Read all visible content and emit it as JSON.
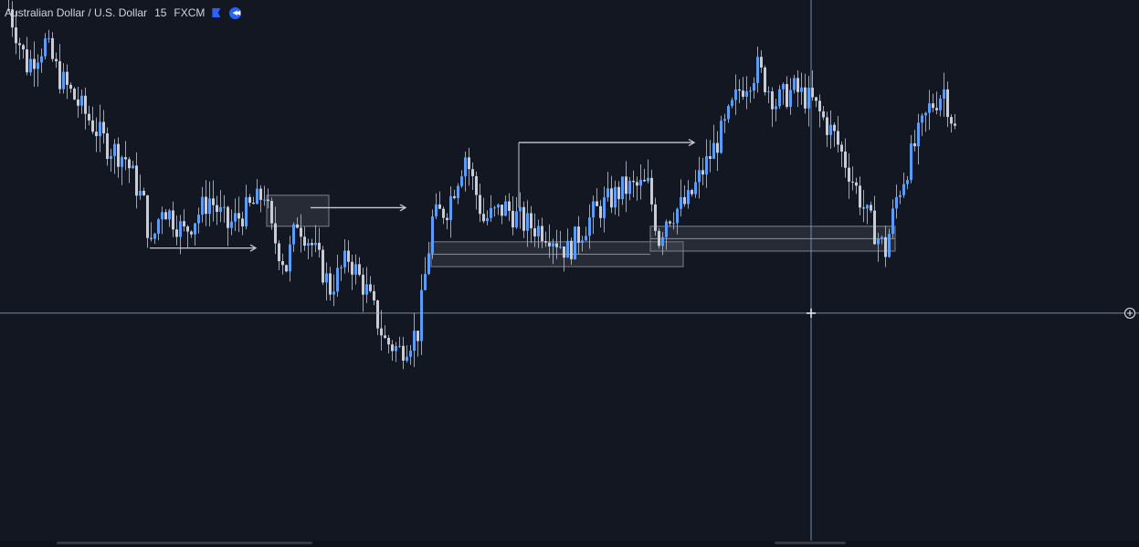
{
  "header": {
    "symbol_name": "Australian Dollar / U.S. Dollar",
    "interval": "15",
    "exchange": "FXCM",
    "flag_icon": "flag-icon",
    "replay_icon": "replay-icon"
  },
  "colors": {
    "background": "#131722",
    "candle": "#5b9cf6",
    "wick": "#9aa5b8",
    "crosshair": "#8fa6c6",
    "annotation": "#c6cad3",
    "zone_fill": "#5d606b"
  },
  "crosshair": {
    "time_index": 220,
    "price": 0.6462
  },
  "chart_data": {
    "type": "line",
    "title": "",
    "xlabel": "",
    "ylabel": "",
    "grid": false,
    "ylim": [
      0.6414,
      0.656
    ],
    "x_index_range": [
      0,
      311
    ],
    "series": [
      {
        "points": [
          [
            0,
            0.656
          ],
          [
            5,
            0.6542
          ],
          [
            10,
            0.6549
          ],
          [
            14,
            0.6538
          ],
          [
            20,
            0.6528
          ],
          [
            27,
            0.6516
          ],
          [
            32,
            0.6512
          ],
          [
            37,
            0.6497
          ],
          [
            39,
            0.6483
          ],
          [
            42,
            0.6497
          ],
          [
            48,
            0.6488
          ],
          [
            55,
            0.6499
          ],
          [
            60,
            0.649
          ],
          [
            68,
            0.6498
          ],
          [
            70,
            0.6501
          ],
          [
            72,
            0.6488
          ],
          [
            76,
            0.6477
          ],
          [
            79,
            0.6492
          ],
          [
            83,
            0.6484
          ],
          [
            88,
            0.647
          ],
          [
            93,
            0.648
          ],
          [
            98,
            0.6469
          ],
          [
            103,
            0.6453
          ],
          [
            107,
            0.645
          ],
          [
            112,
            0.6456
          ],
          [
            116,
            0.6492
          ],
          [
            120,
            0.6496
          ],
          [
            125,
            0.6513
          ],
          [
            130,
            0.6492
          ],
          [
            136,
            0.6496
          ],
          [
            141,
            0.6491
          ],
          [
            148,
            0.6488
          ],
          [
            153,
            0.6482
          ],
          [
            160,
            0.6494
          ],
          [
            168,
            0.6502
          ],
          [
            175,
            0.6503
          ],
          [
            178,
            0.6486
          ],
          [
            180,
            0.6493
          ],
          [
            186,
            0.6498
          ],
          [
            190,
            0.6508
          ],
          [
            196,
            0.6522
          ],
          [
            200,
            0.6534
          ],
          [
            205,
            0.6541
          ],
          [
            210,
            0.653
          ],
          [
            215,
            0.6534
          ],
          [
            220,
            0.653
          ],
          [
            226,
            0.6519
          ],
          [
            230,
            0.6508
          ],
          [
            235,
            0.6493
          ],
          [
            240,
            0.6482
          ],
          [
            243,
            0.6499
          ],
          [
            248,
            0.6516
          ],
          [
            252,
            0.6528
          ],
          [
            256,
            0.6534
          ],
          [
            259,
            0.6521
          ]
        ]
      }
    ],
    "annotations": {
      "liquidity_arrows": [
        {
          "from": 39,
          "to": 68,
          "price": 0.6483
        },
        {
          "from": 83,
          "to": 109,
          "price": 0.6496
        },
        {
          "from": 140,
          "to": 188,
          "price": 0.6517
        }
      ],
      "zones": [
        {
          "from": 71,
          "to": 88,
          "top": 0.65,
          "bottom": 0.649
        },
        {
          "from": 116,
          "to": 185,
          "top": 0.6485,
          "bottom": 0.6477
        },
        {
          "from": 176,
          "to": 243,
          "top": 0.649,
          "bottom": 0.6482
        }
      ],
      "marker_lines": [
        {
          "from": 116,
          "to": 176,
          "price": 0.6481
        },
        {
          "from": 176,
          "to": 243,
          "price": 0.6486
        }
      ]
    }
  }
}
